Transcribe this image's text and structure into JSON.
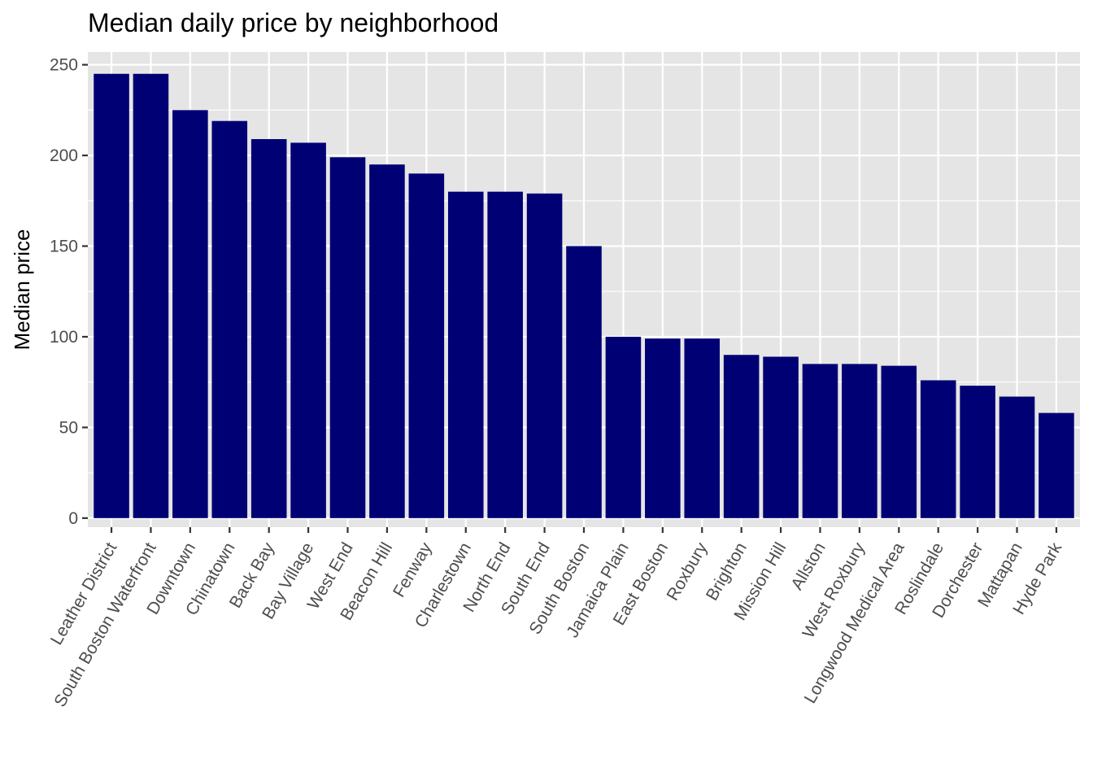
{
  "chart_data": {
    "type": "bar",
    "title": "Median daily price by neighborhood",
    "xlabel": "",
    "ylabel": "Median price",
    "ylim": [
      -5,
      257
    ],
    "yticks": [
      0,
      50,
      100,
      150,
      200,
      250
    ],
    "grid": true,
    "legend": "none",
    "bar_color": "#000075",
    "panel_background": "#E5E5E5",
    "grid_color": "#FFFFFF",
    "categories": [
      "Leather District",
      "South Boston Waterfront",
      "Downtown",
      "Chinatown",
      "Back Bay",
      "Bay Village",
      "West End",
      "Beacon Hill",
      "Fenway",
      "Charlestown",
      "North End",
      "South End",
      "South Boston",
      "Jamaica Plain",
      "East Boston",
      "Roxbury",
      "Brighton",
      "Mission Hill",
      "Allston",
      "West Roxbury",
      "Longwood Medical Area",
      "Roslindale",
      "Dorchester",
      "Mattapan",
      "Hyde Park"
    ],
    "values": [
      245,
      245,
      225,
      219,
      209,
      207,
      199,
      195,
      190,
      180,
      180,
      179,
      150,
      100,
      99,
      99,
      90,
      89,
      85,
      85,
      84,
      76,
      73,
      67,
      58
    ]
  }
}
